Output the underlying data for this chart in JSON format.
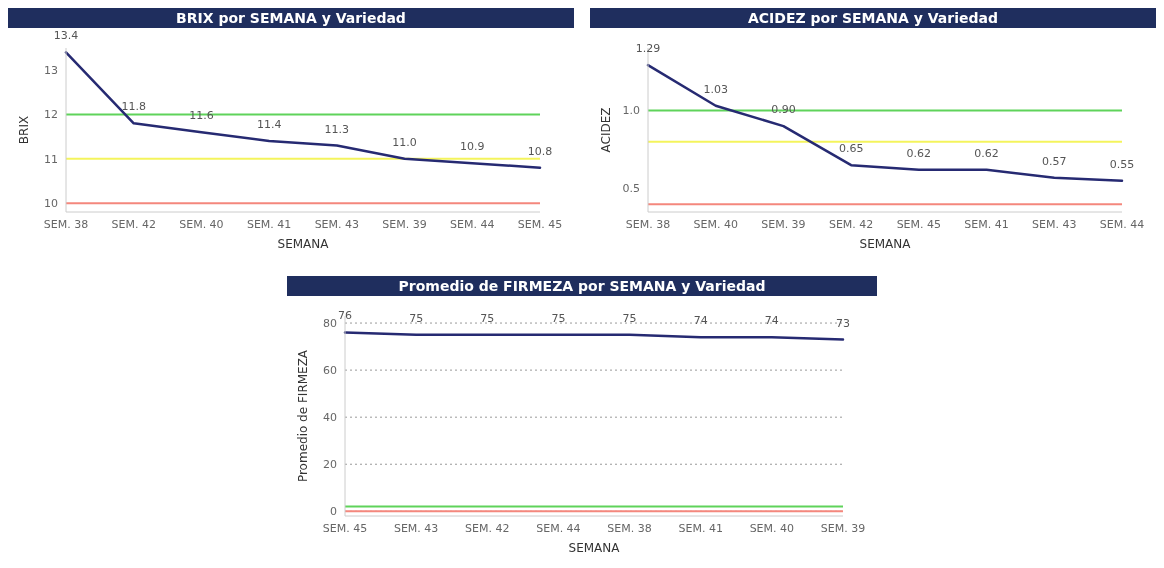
{
  "chart_data": [
    {
      "type": "line",
      "title": "BRIX por SEMANA y Variedad",
      "xlabel": "SEMANA",
      "ylabel": "BRIX",
      "categories": [
        "SEM. 38",
        "SEM. 42",
        "SEM. 40",
        "SEM. 41",
        "SEM. 43",
        "SEM. 39",
        "SEM. 44",
        "SEM. 45"
      ],
      "series": [
        {
          "color": "#262a72",
          "values": [
            13.4,
            11.8,
            11.6,
            11.4,
            11.3,
            11.0,
            10.9,
            10.8
          ]
        }
      ],
      "value_labels": [
        "13.4",
        "11.8",
        "11.6",
        "11.4",
        "11.3",
        "11.0",
        "10.9",
        "10.8"
      ],
      "ylim": [
        9.8,
        13.5
      ],
      "yticks": [
        10,
        11,
        12,
        13
      ],
      "ref_lines": [
        {
          "axis": "y",
          "value": 12,
          "color": "#5fd35a"
        },
        {
          "axis": "y",
          "value": 11,
          "color": "#f4f45c"
        },
        {
          "axis": "y",
          "value": 10,
          "color": "#f4877d"
        }
      ]
    },
    {
      "type": "line",
      "title": "ACIDEZ por SEMANA y Variedad",
      "xlabel": "SEMANA",
      "ylabel": "ACIDEZ",
      "categories": [
        "SEM. 38",
        "SEM. 40",
        "SEM. 39",
        "SEM. 42",
        "SEM. 45",
        "SEM. 41",
        "SEM. 43",
        "SEM. 44"
      ],
      "series": [
        {
          "color": "#262a72",
          "values": [
            1.29,
            1.03,
            0.9,
            0.65,
            0.62,
            0.62,
            0.57,
            0.55
          ]
        }
      ],
      "value_labels": [
        "1.29",
        "1.03",
        "0.90",
        "0.65",
        "0.62",
        "0.62",
        "0.57",
        "0.55"
      ],
      "ylim": [
        0.35,
        1.4
      ],
      "yticks": [
        {
          "value": 0.5,
          "label": "0.5"
        },
        {
          "value": 1,
          "label": "1.0"
        }
      ],
      "ref_lines": [
        {
          "axis": "y",
          "value": 1.0,
          "color": "#5fd35a"
        },
        {
          "axis": "y",
          "value": 0.8,
          "color": "#f4f45c"
        },
        {
          "axis": "y",
          "value": 0.4,
          "color": "#f4877d"
        }
      ]
    },
    {
      "type": "line",
      "title": "Promedio de FIRMEZA por SEMANA y Variedad",
      "xlabel": "SEMANA",
      "ylabel": "Promedio de FIRMEZA",
      "categories": [
        "SEM. 45",
        "SEM. 43",
        "SEM. 42",
        "SEM. 44",
        "SEM. 38",
        "SEM. 41",
        "SEM. 40",
        "SEM. 39"
      ],
      "series": [
        {
          "color": "#262a72",
          "values": [
            76,
            75,
            75,
            75,
            75,
            74,
            74,
            73
          ]
        }
      ],
      "data_labels": true,
      "ylim": [
        -2,
        83
      ],
      "yticks": [
        0,
        20,
        40,
        60,
        80
      ],
      "grid": "y",
      "ref_lines": [
        {
          "axis": "y",
          "value": 0,
          "color": "#f4877d"
        },
        {
          "axis": "y",
          "value": 2,
          "color": "#5fd35a"
        }
      ]
    }
  ]
}
